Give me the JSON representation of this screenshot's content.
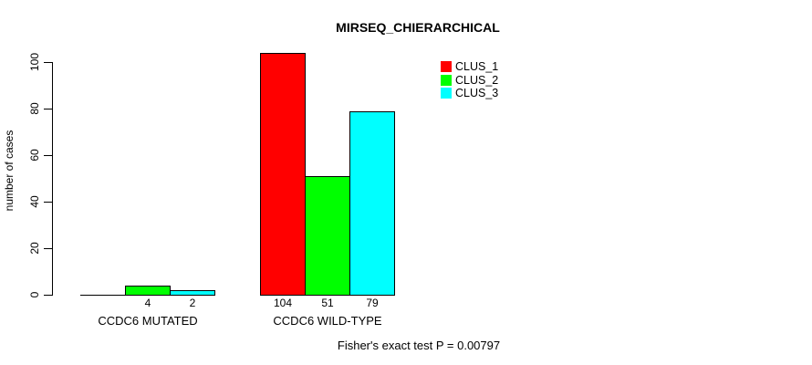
{
  "chart_data": {
    "type": "bar",
    "title": "MIRSEQ_CHIERARCHICAL",
    "ylabel": "number of cases",
    "xlabel": "",
    "categories": [
      "CCDC6 MUTATED",
      "CCDC6 WILD-TYPE"
    ],
    "series": [
      {
        "name": "CLUS_1",
        "color": "#ff0000",
        "values": [
          0,
          104
        ]
      },
      {
        "name": "CLUS_2",
        "color": "#00ff00",
        "values": [
          4,
          51
        ]
      },
      {
        "name": "CLUS_3",
        "color": "#00ffff",
        "values": [
          2,
          79
        ]
      }
    ],
    "value_labels": [
      [
        "",
        "4",
        "2"
      ],
      [
        "104",
        "51",
        "79"
      ]
    ],
    "yticks": [
      "0",
      "20",
      "40",
      "60",
      "80",
      "100"
    ],
    "ytick_values": [
      0,
      20,
      40,
      60,
      80,
      100
    ],
    "ylim": [
      0,
      104
    ],
    "grid": false,
    "legend_position": "top-right",
    "legend_entries": [
      "CLUS_1",
      "CLUS_2",
      "CLUS_3"
    ],
    "footer": "Fisher's exact test P = 0.00797",
    "bar_border_color": "#000000",
    "background_color": "#ffffff",
    "text_color": "#000000"
  }
}
